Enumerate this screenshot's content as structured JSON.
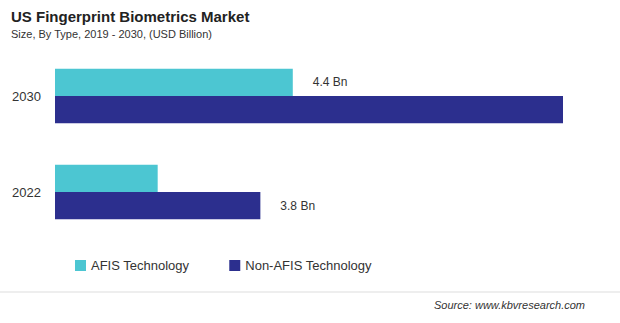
{
  "chart_data": {
    "type": "bar",
    "orientation": "horizontal",
    "title": "US Fingerprint Biometrics Market",
    "subtitle": "Size, By Type, 2019 - 2030, (USD Billion)",
    "source": "Source: www.kbvresearch.com",
    "categories": [
      "2022",
      "2030"
    ],
    "series": [
      {
        "name": "AFIS Technology",
        "color": "#4cc6d2",
        "values": [
          1.9,
          4.4
        ],
        "value_labels": [
          null,
          "4.4 Bn"
        ]
      },
      {
        "name": "Non-AFIS Technology",
        "color": "#2c2f8e",
        "values": [
          3.8,
          9.4
        ],
        "value_labels": [
          "3.8 Bn",
          null
        ]
      }
    ],
    "xlim": [
      0,
      9.4
    ],
    "grid": false,
    "legend": "bottom-left",
    "data_labels": true,
    "tick_labels": "y"
  }
}
